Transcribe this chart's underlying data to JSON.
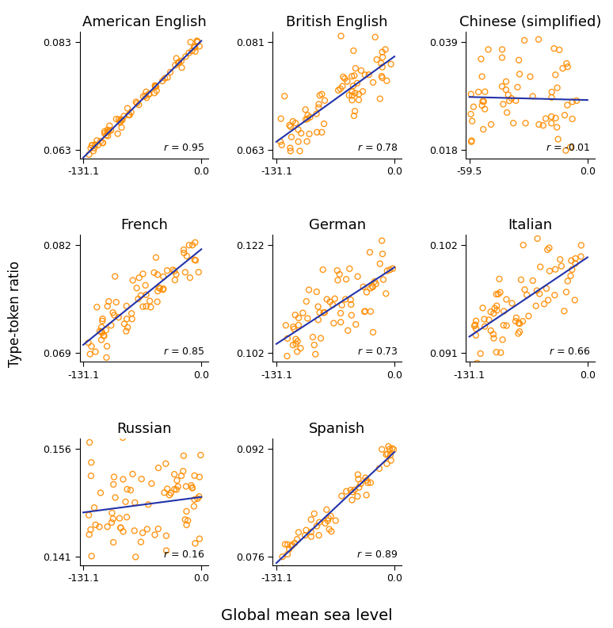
{
  "subplots": [
    {
      "title": "American English",
      "r": 0.95,
      "xlim": [
        -131.1,
        0.0
      ],
      "ylim": [
        0.063,
        0.083
      ],
      "yticks": [
        0.063,
        0.083
      ],
      "xticks": [
        -131.1,
        0.0
      ],
      "n_points": 70,
      "noise": 0.1
    },
    {
      "title": "British English",
      "r": 0.78,
      "xlim": [
        -131.1,
        0.0
      ],
      "ylim": [
        0.063,
        0.081
      ],
      "yticks": [
        0.063,
        0.081
      ],
      "xticks": [
        -131.1,
        0.0
      ],
      "n_points": 70,
      "noise": 0.22
    },
    {
      "title": "Chinese (simplified)",
      "r": -0.01,
      "xlim": [
        -59.5,
        0.0
      ],
      "ylim": [
        0.018,
        0.039
      ],
      "yticks": [
        0.018,
        0.039
      ],
      "xticks": [
        -59.5,
        0.0
      ],
      "n_points": 60,
      "noise": 0.2
    },
    {
      "title": "French",
      "r": 0.85,
      "xlim": [
        -131.1,
        0.0
      ],
      "ylim": [
        0.069,
        0.082
      ],
      "yticks": [
        0.069,
        0.082
      ],
      "xticks": [
        -131.1,
        0.0
      ],
      "n_points": 70,
      "noise": 0.22
    },
    {
      "title": "German",
      "r": 0.73,
      "xlim": [
        -131.1,
        0.0
      ],
      "ylim": [
        0.102,
        0.122
      ],
      "yticks": [
        0.102,
        0.122
      ],
      "xticks": [
        -131.1,
        0.0
      ],
      "n_points": 70,
      "noise": 0.25
    },
    {
      "title": "Italian",
      "r": 0.66,
      "xlim": [
        -131.1,
        0.0
      ],
      "ylim": [
        0.091,
        0.102
      ],
      "yticks": [
        0.091,
        0.102
      ],
      "xticks": [
        -131.1,
        0.0
      ],
      "n_points": 70,
      "noise": 0.28
    },
    {
      "title": "Russian",
      "r": 0.16,
      "xlim": [
        -131.1,
        0.0
      ],
      "ylim": [
        0.141,
        0.156
      ],
      "yticks": [
        0.141,
        0.156
      ],
      "xticks": [
        -131.1,
        0.0
      ],
      "n_points": 75,
      "noise": 0.4
    },
    {
      "title": "Spanish",
      "r": 0.89,
      "xlim": [
        -131.1,
        0.0
      ],
      "ylim": [
        0.076,
        0.092
      ],
      "yticks": [
        0.076,
        0.092
      ],
      "xticks": [
        -131.1,
        0.0
      ],
      "n_points": 55,
      "noise": 0.14
    }
  ],
  "orange_color": "#FF8C00",
  "blue_color": "#2233AA",
  "marker_size": 25,
  "marker_lw": 1.0,
  "line_width": 1.5,
  "ylabel": "Type-token ratio",
  "xlabel": "Global mean sea level",
  "background_color": "#FFFFFF",
  "title_fontsize": 13,
  "label_fontsize": 12,
  "tick_fontsize": 9,
  "r_fontsize": 9
}
